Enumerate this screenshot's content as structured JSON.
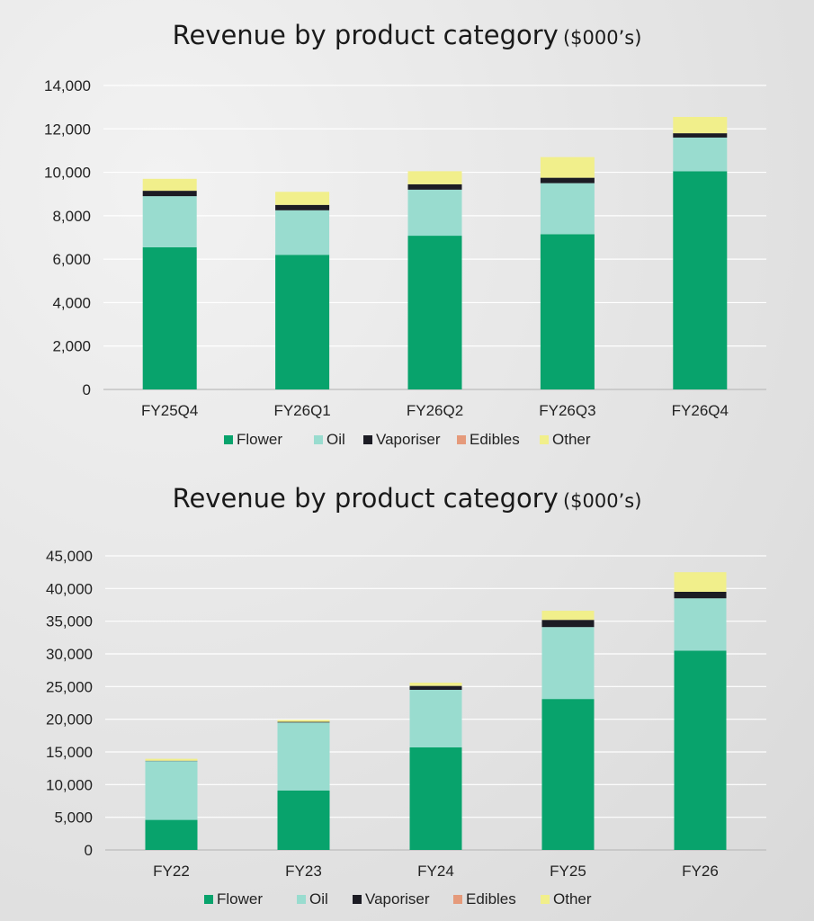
{
  "colors": {
    "Flower": "#08a36c",
    "Oil": "#99dccf",
    "Vaporiser": "#1c1c24",
    "Edibles": "#e59a7b",
    "Other": "#f1ef8b"
  },
  "chart_data": [
    {
      "type": "bar",
      "stacked": true,
      "title": "Revenue by product category",
      "title_unit": "($000’s)",
      "categories": [
        "FY25Q4",
        "FY26Q1",
        "FY26Q2",
        "FY26Q3",
        "FY26Q4"
      ],
      "ylim": [
        0,
        14000
      ],
      "yticks": [
        0,
        2000,
        4000,
        6000,
        8000,
        10000,
        12000,
        14000
      ],
      "ytick_labels": [
        "0",
        "2,000",
        "4,000",
        "6,000",
        "8,000",
        "10,000",
        "12,000",
        "14,000"
      ],
      "grid": true,
      "legend_position": "bottom",
      "series": [
        {
          "name": "Flower",
          "values": [
            6550,
            6200,
            7080,
            7150,
            10050
          ]
        },
        {
          "name": "Oil",
          "values": [
            2350,
            2050,
            2120,
            2350,
            1550
          ]
        },
        {
          "name": "Vaporiser",
          "values": [
            250,
            250,
            250,
            250,
            200
          ]
        },
        {
          "name": "Edibles",
          "values": [
            0,
            0,
            0,
            0,
            0
          ]
        },
        {
          "name": "Other",
          "values": [
            550,
            600,
            600,
            950,
            750
          ]
        }
      ]
    },
    {
      "type": "bar",
      "stacked": true,
      "title": "Revenue by product category",
      "title_unit": "($000’s)",
      "categories": [
        "FY22",
        "FY23",
        "FY24",
        "FY25",
        "FY26"
      ],
      "ylim": [
        0,
        45000
      ],
      "yticks": [
        0,
        5000,
        10000,
        15000,
        20000,
        25000,
        30000,
        35000,
        40000,
        45000
      ],
      "ytick_labels": [
        "0",
        "5,000",
        "10,000",
        "15,000",
        "20,000",
        "25,000",
        "30,000",
        "35,000",
        "40,000",
        "45,000"
      ],
      "grid": true,
      "legend_position": "bottom",
      "series": [
        {
          "name": "Flower",
          "values": [
            4600,
            9100,
            15700,
            23100,
            30500
          ]
        },
        {
          "name": "Oil",
          "values": [
            9000,
            10400,
            8800,
            11000,
            8000
          ]
        },
        {
          "name": "Vaporiser",
          "values": [
            50,
            100,
            600,
            1100,
            1000
          ]
        },
        {
          "name": "Edibles",
          "values": [
            0,
            0,
            0,
            0,
            0
          ]
        },
        {
          "name": "Other",
          "values": [
            300,
            300,
            500,
            1400,
            3000
          ]
        }
      ]
    }
  ]
}
